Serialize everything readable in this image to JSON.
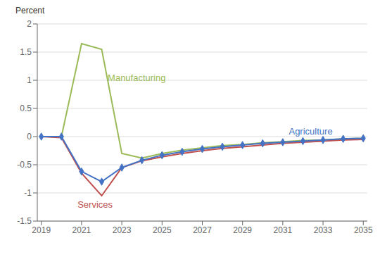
{
  "chart_data": {
    "type": "line",
    "ylabel": "Percent",
    "x": [
      2019,
      2020,
      2021,
      2022,
      2023,
      2024,
      2025,
      2026,
      2027,
      2028,
      2029,
      2030,
      2031,
      2032,
      2033,
      2034,
      2035
    ],
    "series": [
      {
        "name": "Manufacturing",
        "color": "#9BBB59",
        "values": [
          0.0,
          0.0,
          1.65,
          1.55,
          -0.3,
          -0.38,
          -0.3,
          -0.24,
          -0.2,
          -0.16,
          -0.14,
          -0.11,
          -0.09,
          -0.07,
          -0.06,
          -0.04,
          -0.03
        ],
        "label_at": [
          2022.3,
          1.05
        ]
      },
      {
        "name": "Services",
        "color": "#C0504D",
        "values": [
          0.0,
          -0.02,
          -0.65,
          -1.05,
          -0.55,
          -0.43,
          -0.36,
          -0.3,
          -0.25,
          -0.21,
          -0.18,
          -0.15,
          -0.12,
          -0.1,
          -0.08,
          -0.06,
          -0.05
        ],
        "label_at": [
          2020.8,
          -1.2
        ]
      },
      {
        "name": "Agriculture",
        "color": "#4472C4",
        "marker": "diamond",
        "values": [
          0.0,
          0.0,
          -0.62,
          -0.8,
          -0.55,
          -0.42,
          -0.33,
          -0.27,
          -0.22,
          -0.18,
          -0.15,
          -0.12,
          -0.1,
          -0.08,
          -0.06,
          -0.04,
          -0.03
        ],
        "label_at": [
          2031.3,
          0.09
        ]
      }
    ],
    "xlim": [
      2018.8,
      2035.2
    ],
    "xticks": [
      2019,
      2021,
      2023,
      2025,
      2027,
      2029,
      2031,
      2033,
      2035
    ],
    "ylim": [
      -1.5,
      2.0
    ],
    "yticks": [
      -1.5,
      -1.0,
      -0.5,
      0.0,
      0.5,
      1.0,
      1.5,
      2.0
    ],
    "grid": true
  }
}
